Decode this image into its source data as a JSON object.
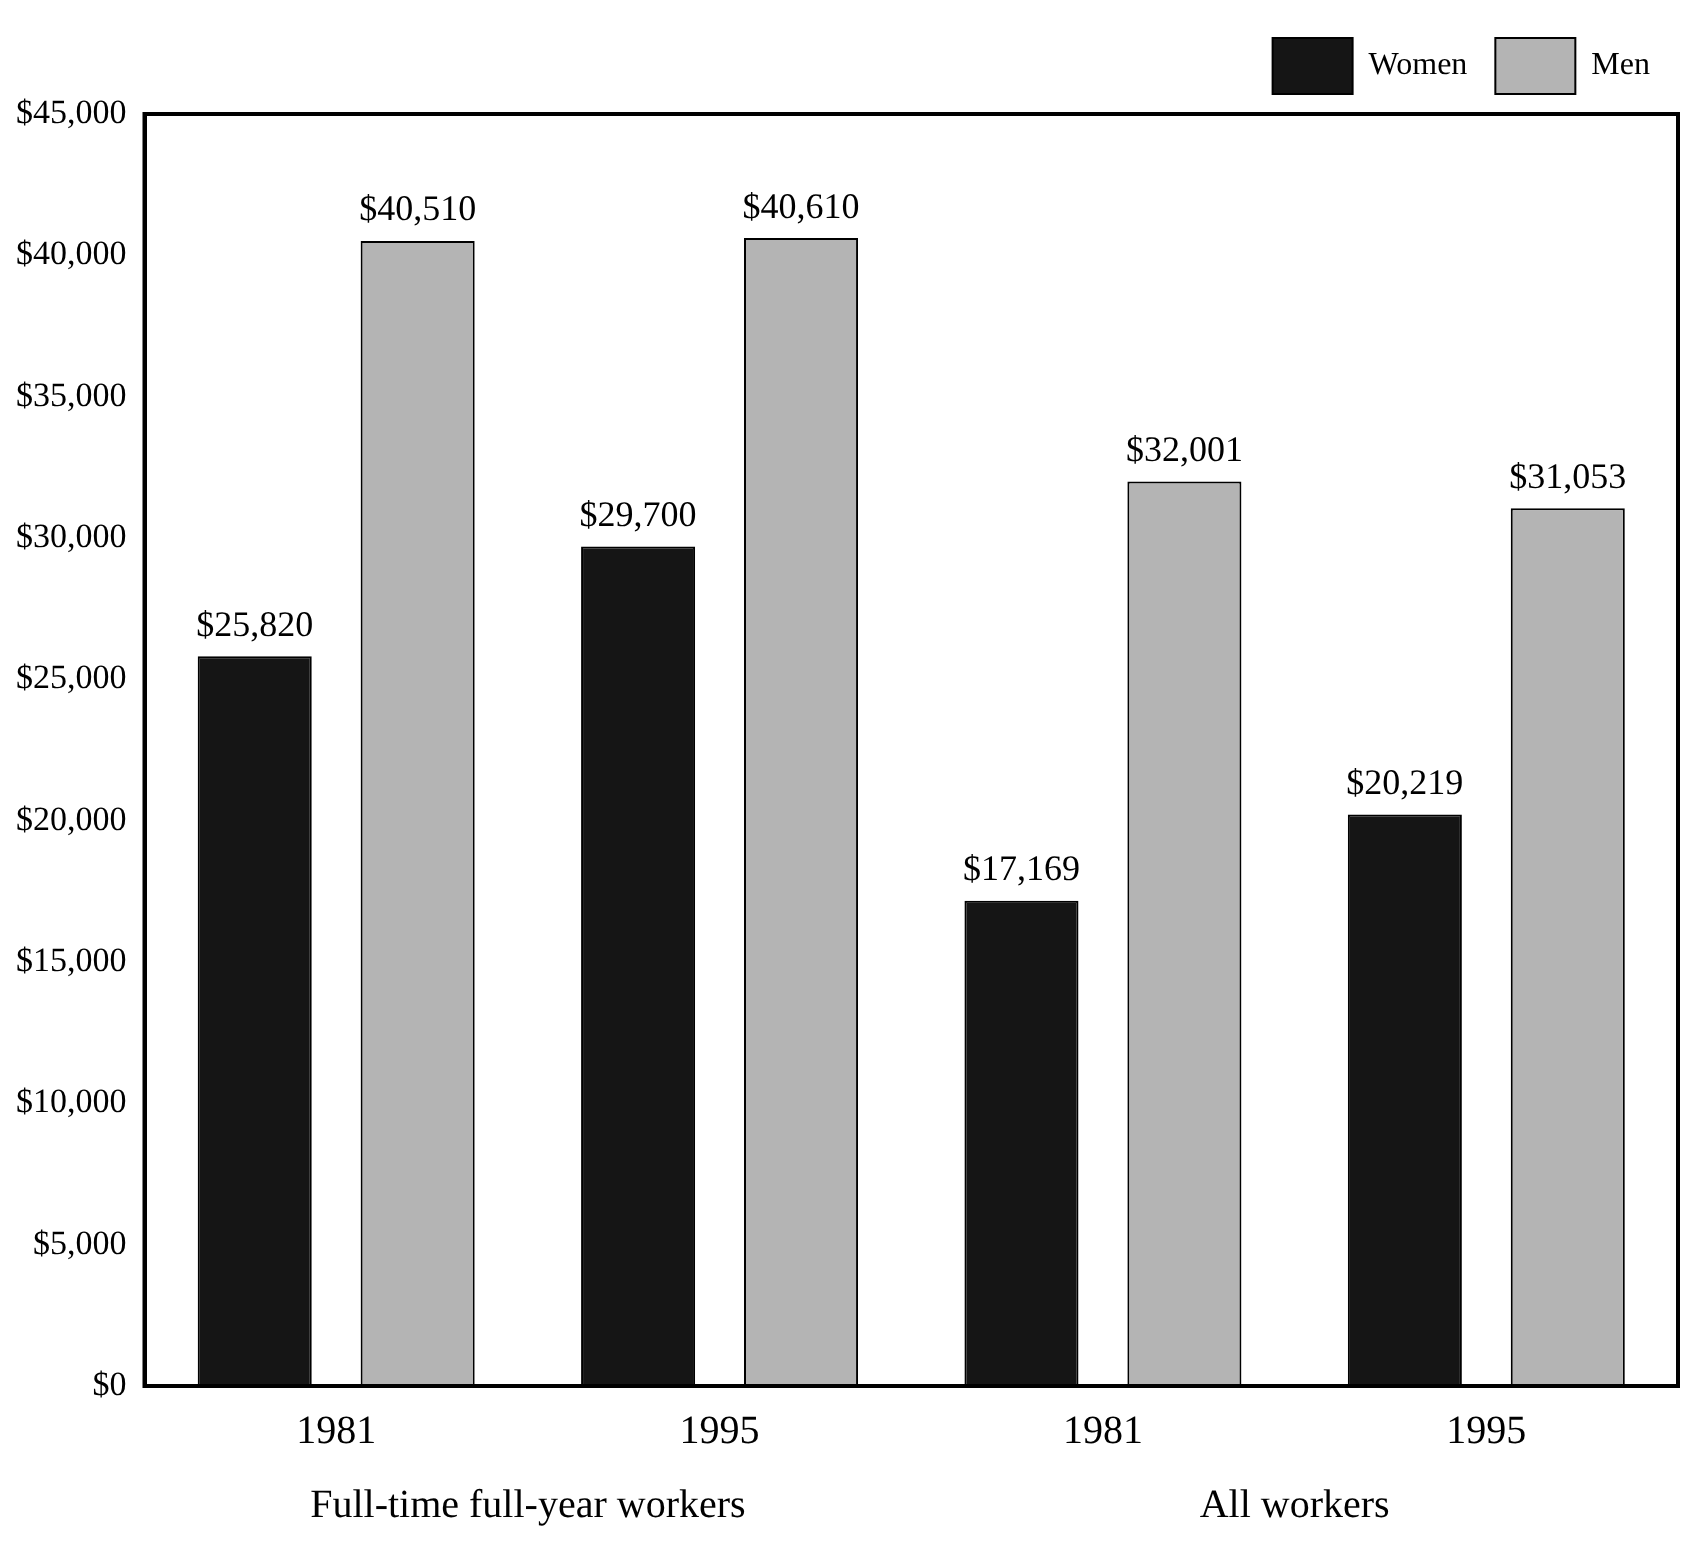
{
  "chart_data": {
    "type": "bar",
    "categories": [
      "1981",
      "1995",
      "1981",
      "1995"
    ],
    "series": [
      {
        "name": "Women",
        "color": "#151515",
        "values": [
          25820,
          29700,
          17169,
          20219
        ],
        "value_labels": [
          "$25,820",
          "$29,700",
          "$17,169",
          "$20,219"
        ]
      },
      {
        "name": "Men",
        "color": "#b4b4b4",
        "values": [
          40510,
          40610,
          32001,
          31053
        ],
        "value_labels": [
          "$40,510",
          "$40,610",
          "$32,001",
          "$31,053"
        ]
      }
    ],
    "ylim": [
      0,
      45000
    ],
    "yticks": [
      {
        "value": 0,
        "label": "$0"
      },
      {
        "value": 5000,
        "label": "$5,000"
      },
      {
        "value": 10000,
        "label": "$10,000"
      },
      {
        "value": 15000,
        "label": "$15,000"
      },
      {
        "value": 20000,
        "label": "$20,000"
      },
      {
        "value": 25000,
        "label": "$25,000"
      },
      {
        "value": 30000,
        "label": "$30,000"
      },
      {
        "value": 35000,
        "label": "$35,000"
      },
      {
        "value": 40000,
        "label": "$40,000"
      },
      {
        "value": 45000,
        "label": "$45,000"
      }
    ],
    "annotations": [
      "Full-time full-year workers",
      "All workers"
    ],
    "grid": false,
    "legend": "top right"
  }
}
